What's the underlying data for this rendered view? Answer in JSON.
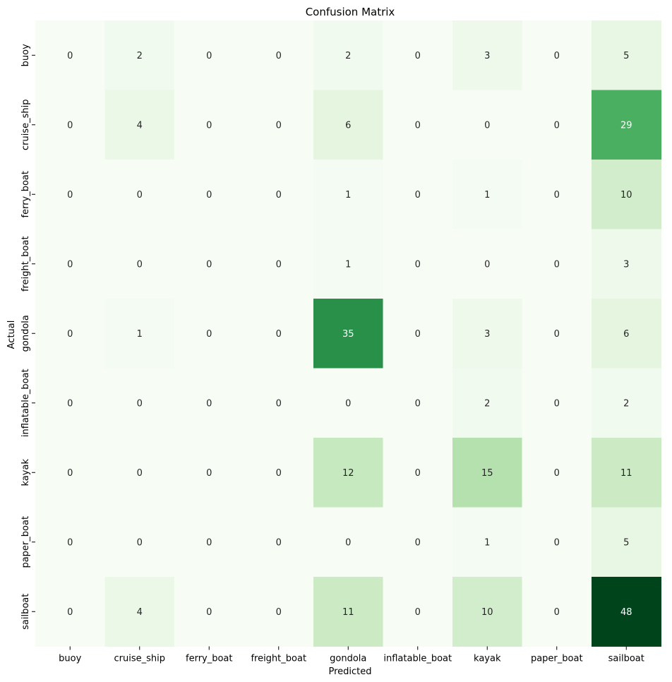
{
  "chart_data": {
    "type": "heatmap",
    "title": "Confusion Matrix",
    "xlabel": "Predicted",
    "ylabel": "Actual",
    "x_categories": [
      "buoy",
      "cruise_ship",
      "ferry_boat",
      "freight_boat",
      "gondola",
      "inflatable_boat",
      "kayak",
      "paper_boat",
      "sailboat"
    ],
    "y_categories": [
      "buoy",
      "cruise_ship",
      "ferry_boat",
      "freight_boat",
      "gondola",
      "inflatable_boat",
      "kayak",
      "paper_boat",
      "sailboat"
    ],
    "values": [
      [
        0,
        2,
        0,
        0,
        2,
        0,
        3,
        0,
        5
      ],
      [
        0,
        4,
        0,
        0,
        6,
        0,
        0,
        0,
        29
      ],
      [
        0,
        0,
        0,
        0,
        1,
        0,
        1,
        0,
        10
      ],
      [
        0,
        0,
        0,
        0,
        1,
        0,
        0,
        0,
        3
      ],
      [
        0,
        1,
        0,
        0,
        35,
        0,
        3,
        0,
        6
      ],
      [
        0,
        0,
        0,
        0,
        0,
        0,
        2,
        0,
        2
      ],
      [
        0,
        0,
        0,
        0,
        12,
        0,
        15,
        0,
        11
      ],
      [
        0,
        0,
        0,
        0,
        0,
        0,
        1,
        0,
        5
      ],
      [
        0,
        4,
        0,
        0,
        11,
        0,
        10,
        0,
        48
      ]
    ],
    "colormap": "Greens",
    "vmin": 0,
    "vmax": 48,
    "colorbar": false,
    "grid": false
  }
}
